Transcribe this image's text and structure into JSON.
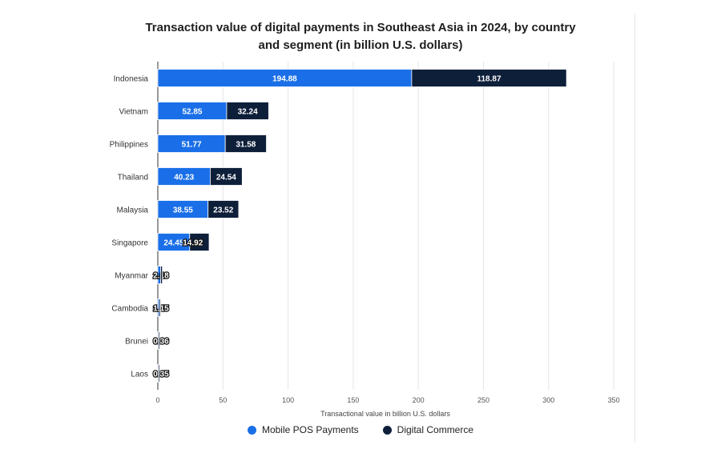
{
  "title_line1": "Transaction value of digital payments in Southeast Asia in 2024, by country",
  "title_line2": "and segment (in billion U.S. dollars)",
  "colors": {
    "mobile_pos": "#1a6fe8",
    "digital_commerce": "#0e1f3a",
    "grid": "#e5e5e5",
    "axis": "#333333"
  },
  "chart_data": {
    "type": "bar",
    "orientation": "horizontal",
    "stacked": true,
    "categories": [
      "Indonesia",
      "Vietnam",
      "Philippines",
      "Thailand",
      "Malaysia",
      "Singapore",
      "Myanmar",
      "Cambodia",
      "Brunei",
      "Laos"
    ],
    "series": [
      {
        "name": "Mobile POS Payments",
        "values": [
          194.88,
          52.85,
          51.77,
          40.23,
          38.55,
          24.45,
          2.18,
          1.15,
          0.36,
          0.35
        ],
        "labels": [
          "194.88",
          "52.85",
          "51.77",
          "40.23",
          "38.55",
          "24.45",
          "2.18",
          "1.15",
          "0.36",
          "0.35"
        ]
      },
      {
        "name": "Digital Commerce",
        "values": [
          118.87,
          32.24,
          31.58,
          24.54,
          23.52,
          14.92,
          1.3,
          0.7,
          0.2,
          0.2
        ],
        "labels": [
          "118.87",
          "32.24",
          "31.58",
          "24.54",
          "23.52",
          "14.92",
          "",
          "",
          "",
          ""
        ]
      }
    ],
    "xlabel": "Transactional value in billion U.S. dollars",
    "xticks": [
      0,
      50,
      100,
      150,
      200,
      250,
      300,
      350
    ],
    "xlim": [
      0,
      350
    ],
    "grid": true,
    "legend_position": "bottom"
  }
}
